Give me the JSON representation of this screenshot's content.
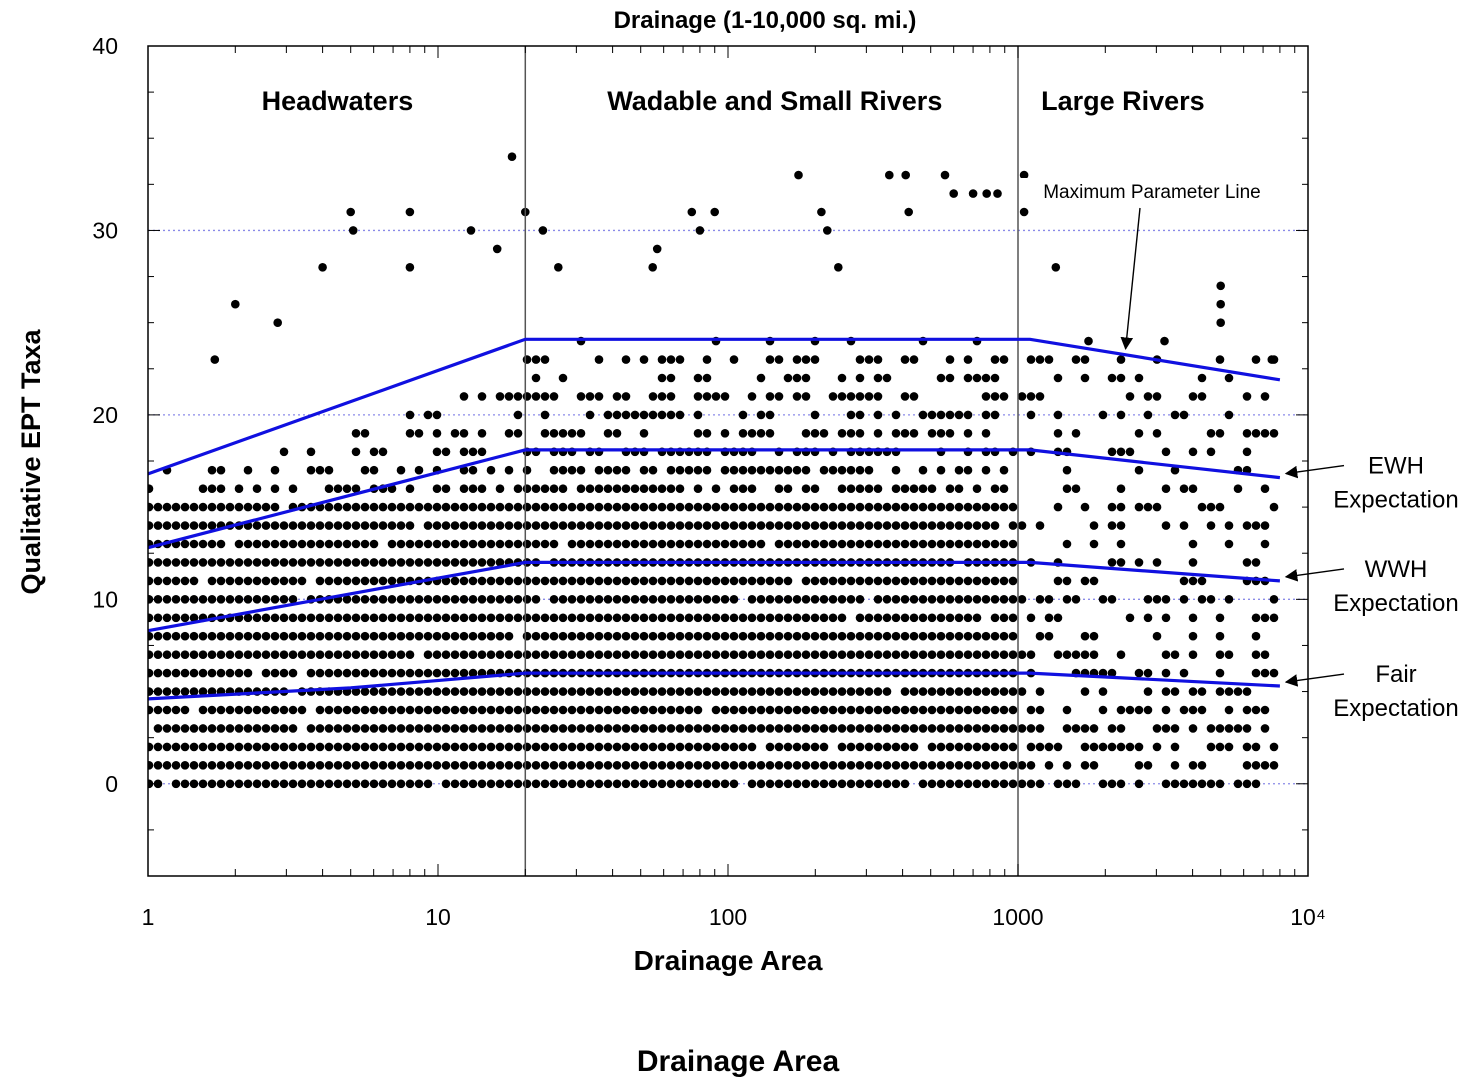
{
  "chart_data": {
    "type": "scatter",
    "title": "Drainage (1-10,000 sq. mi.)",
    "xlabel": "Drainage Area",
    "ylabel": "Qualitative EPT Taxa",
    "x_scale": "log",
    "xlim": [
      1,
      10000
    ],
    "ylim": [
      -5,
      40
    ],
    "x_tick_labels": [
      "1",
      "10",
      "100",
      "1000",
      "10⁴"
    ],
    "y_tick_labels": [
      "0",
      "10",
      "20",
      "30",
      "40"
    ],
    "x_ticks": [
      1,
      10,
      100,
      1000,
      10000
    ],
    "y_ticks": [
      0,
      10,
      20,
      30,
      40
    ],
    "grid_y_dotted": [
      0,
      10,
      20,
      30
    ],
    "region_boundaries_x": [
      20,
      1000
    ],
    "regions": [
      {
        "label": "Headwaters",
        "x_center": 4.5
      },
      {
        "label": "Wadable and Small Rivers",
        "x_center": 145
      },
      {
        "label": "Large Rivers",
        "x_center": 2300
      }
    ],
    "lines": [
      {
        "name": "Maximum Parameter Line",
        "x": [
          1,
          20,
          1100,
          8000
        ],
        "y": [
          16.8,
          24.1,
          24.1,
          21.9
        ]
      },
      {
        "name": "EWH Expectation",
        "x": [
          1,
          20,
          1100,
          8000
        ],
        "y": [
          12.8,
          18.1,
          18.1,
          16.6
        ]
      },
      {
        "name": "WWH Expectation",
        "x": [
          1,
          5,
          20,
          1100,
          8000
        ],
        "y": [
          8.3,
          10.3,
          12.0,
          12.0,
          11.0
        ]
      },
      {
        "name": "Fair Expectation",
        "x": [
          1,
          5,
          20,
          1100,
          8000
        ],
        "y": [
          4.6,
          5.2,
          6.0,
          6.0,
          5.3
        ]
      }
    ],
    "annotations": [
      {
        "text": "Maximum Parameter Line",
        "target": "Maximum Parameter Line"
      },
      {
        "text": "EWH",
        "text2": "Expectation",
        "target": "EWH Expectation"
      },
      {
        "text": "WWH",
        "text2": "Expectation",
        "target": "WWH Expectation"
      },
      {
        "text": "Fair",
        "text2": "Expectation",
        "target": "Fair Expectation"
      }
    ],
    "scatter_density": [
      {
        "x_min": 1,
        "x_max": 20,
        "y_min": 0,
        "y_max": 17,
        "fill": "dense"
      },
      {
        "x_min": 20,
        "x_max": 1000,
        "y_min": 0,
        "y_max": 24,
        "fill": "dense"
      },
      {
        "x_min": 1000,
        "x_max": 8000,
        "y_min": 0,
        "y_max": 23,
        "fill": "sparse"
      }
    ],
    "outlier_points": [
      [
        18,
        34
      ],
      [
        5,
        31
      ],
      [
        8,
        31
      ],
      [
        5.1,
        30
      ],
      [
        13,
        30
      ],
      [
        4,
        28
      ],
      [
        8,
        28
      ],
      [
        16,
        29
      ],
      [
        20,
        31
      ],
      [
        23,
        30
      ],
      [
        26,
        28
      ],
      [
        57,
        29
      ],
      [
        55,
        28
      ],
      [
        75,
        31
      ],
      [
        90,
        31
      ],
      [
        80,
        30
      ],
      [
        175,
        33
      ],
      [
        210,
        31
      ],
      [
        220,
        30
      ],
      [
        240,
        28
      ],
      [
        360,
        33
      ],
      [
        410,
        33
      ],
      [
        420,
        31
      ],
      [
        560,
        33
      ],
      [
        600,
        32
      ],
      [
        700,
        32
      ],
      [
        780,
        32
      ],
      [
        850,
        32
      ],
      [
        1050,
        33
      ],
      [
        1050,
        31
      ],
      [
        1350,
        28
      ],
      [
        1750,
        24
      ],
      [
        3200,
        24
      ],
      [
        5000,
        27
      ],
      [
        5000,
        26
      ],
      [
        5000,
        25
      ],
      [
        7500,
        23
      ],
      [
        2,
        26
      ],
      [
        1.7,
        23
      ],
      [
        2.8,
        25
      ]
    ],
    "colors": {
      "lines": "#1010e0",
      "points": "#000000",
      "grid": "#8a8ae8",
      "boundary": "#555555"
    }
  },
  "bottom_caption": "Drainage Area"
}
